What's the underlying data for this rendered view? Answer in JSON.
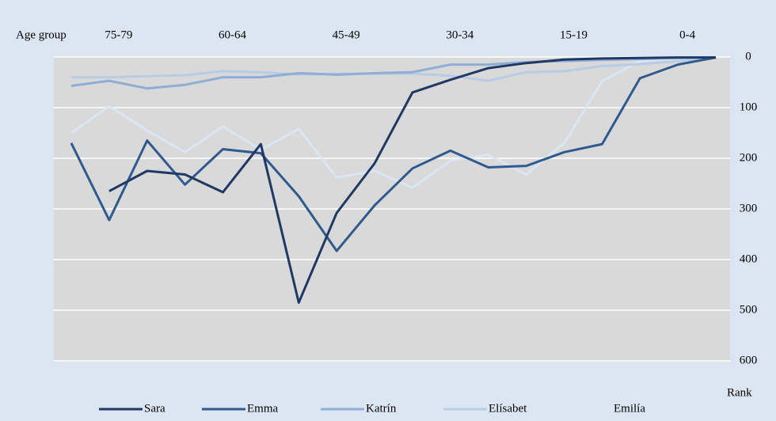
{
  "chart_data": {
    "type": "line",
    "x_label": "Age group",
    "y_label": "Rank",
    "categories": [
      null,
      "75-79",
      null,
      null,
      "60-64",
      null,
      null,
      "45-49",
      null,
      null,
      "30-34",
      null,
      null,
      "15-19",
      null,
      null,
      "0-4",
      null
    ],
    "ylim": [
      0,
      600
    ],
    "yticks": [
      0,
      100,
      200,
      300,
      400,
      500,
      600
    ],
    "y_inverted": true,
    "grid": true,
    "series": [
      {
        "name": "Sara",
        "color": "#1f3864",
        "values": [
          null,
          265,
          225,
          232,
          267,
          172,
          485,
          308,
          210,
          70,
          45,
          22,
          12,
          5,
          3,
          2,
          1,
          1
        ]
      },
      {
        "name": "Emma",
        "color": "#2f5a8f",
        "values": [
          170,
          322,
          165,
          252,
          182,
          190,
          275,
          383,
          293,
          220,
          185,
          218,
          215,
          188,
          172,
          42,
          15,
          1
        ]
      },
      {
        "name": "Katrín",
        "color": "#8eaed6",
        "values": [
          57,
          47,
          62,
          55,
          40,
          40,
          32,
          35,
          32,
          30,
          15,
          15,
          10,
          8,
          6,
          4,
          2,
          1
        ]
      },
      {
        "name": "Elísabet",
        "color": "#b8cce4",
        "values": [
          40,
          40,
          38,
          36,
          28,
          30,
          35,
          33,
          33,
          33,
          37,
          47,
          30,
          28,
          18,
          14,
          8,
          1
        ]
      },
      {
        "name": "Emilía",
        "color": "#dbe5f3",
        "values": [
          150,
          97,
          145,
          188,
          137,
          183,
          142,
          238,
          225,
          258,
          205,
          193,
          232,
          170,
          48,
          8,
          3,
          1
        ]
      }
    ]
  }
}
